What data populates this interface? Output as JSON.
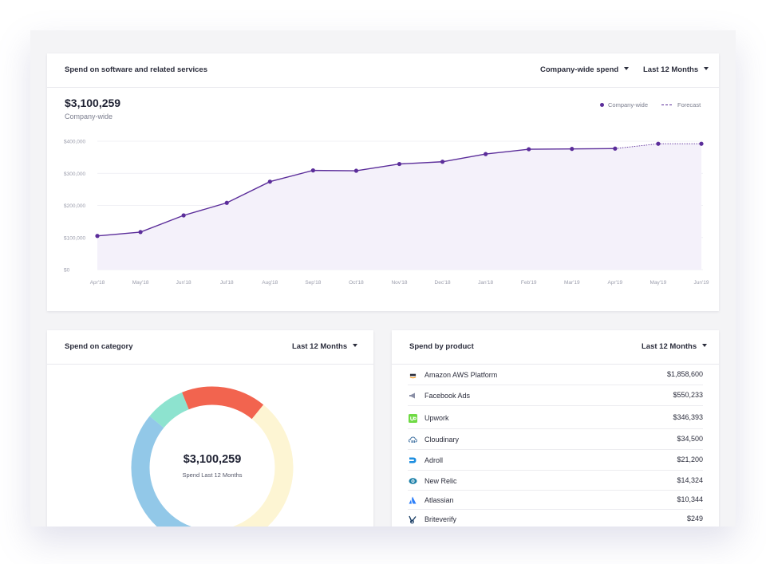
{
  "spend_card": {
    "title": "Spend on software and related services",
    "scope_dropdown": "Company-wide spend",
    "period_dropdown": "Last 12 Months",
    "total": "$3,100,259",
    "total_label": "Company-wide",
    "legend": {
      "actual": "Company-wide",
      "forecast": "Forecast"
    }
  },
  "chart_data": {
    "type": "line",
    "categories": [
      "Apr'18",
      "May'18",
      "Jun'18",
      "Jul'18",
      "Aug'18",
      "Sep'18",
      "Oct'18",
      "Nov'18",
      "Dec'18",
      "Jan'18",
      "Feb'19",
      "Mar'19",
      "Apr'19",
      "May'19",
      "Jun'19"
    ],
    "y_ticks": [
      "$0",
      "$100,000",
      "$200,000",
      "$300,000",
      "$400,000"
    ],
    "ylim": [
      0,
      400000
    ],
    "series": [
      {
        "name": "Company-wide",
        "style": "solid",
        "values": [
          105000,
          117000,
          169000,
          208000,
          274000,
          309000,
          308000,
          329000,
          336000,
          360000,
          375000,
          376000,
          377000,
          null,
          null
        ]
      },
      {
        "name": "Forecast",
        "style": "dashed",
        "values": [
          null,
          null,
          null,
          null,
          null,
          null,
          null,
          null,
          null,
          null,
          null,
          null,
          377000,
          392000,
          392000
        ]
      }
    ],
    "colors": {
      "line": "#5b2d9a",
      "area": "#f4f1fa",
      "grid": "#ececf2"
    },
    "grid": true,
    "legend_position": "top-right"
  },
  "category_card": {
    "title": "Spend on category",
    "period_dropdown": "Last 12 Months",
    "donut_total": "$3,100,259",
    "donut_label": "Spend Last 12 Months",
    "segments": [
      {
        "color": "#f2644f",
        "share": 0.17
      },
      {
        "color": "#fdf5d3",
        "share": 0.43
      },
      {
        "color": "#92c8e8",
        "share": 0.32
      },
      {
        "color": "#8de3cf",
        "share": 0.08
      }
    ]
  },
  "product_card": {
    "title": "Spend by product",
    "period_dropdown": "Last 12 Months",
    "products": [
      {
        "name": "Amazon AWS Platform",
        "amount": "$1,858,600",
        "icon": "aws-icon",
        "color": "#f59b1e"
      },
      {
        "name": "Facebook Ads",
        "amount": "$550,233",
        "icon": "megaphone-icon",
        "color": "#8a8fa6"
      },
      {
        "name": "Upwork",
        "amount": "$346,393",
        "icon": "upwork-icon",
        "color": "#6fda44"
      },
      {
        "name": "Cloudinary",
        "amount": "$34,500",
        "icon": "cloudinary-icon",
        "color": "#3c6e9f"
      },
      {
        "name": "Adroll",
        "amount": "$21,200",
        "icon": "adroll-icon",
        "color": "#1f8fe0"
      },
      {
        "name": "New Relic",
        "amount": "$14,324",
        "icon": "new-relic-icon",
        "color": "#1b7fa8"
      },
      {
        "name": "Atlassian",
        "amount": "$10,344",
        "icon": "atlassian-icon",
        "color": "#2d7ff9"
      },
      {
        "name": "Briteverify",
        "amount": "$249",
        "icon": "briteverify-icon",
        "color": "#1c3f66"
      }
    ]
  }
}
